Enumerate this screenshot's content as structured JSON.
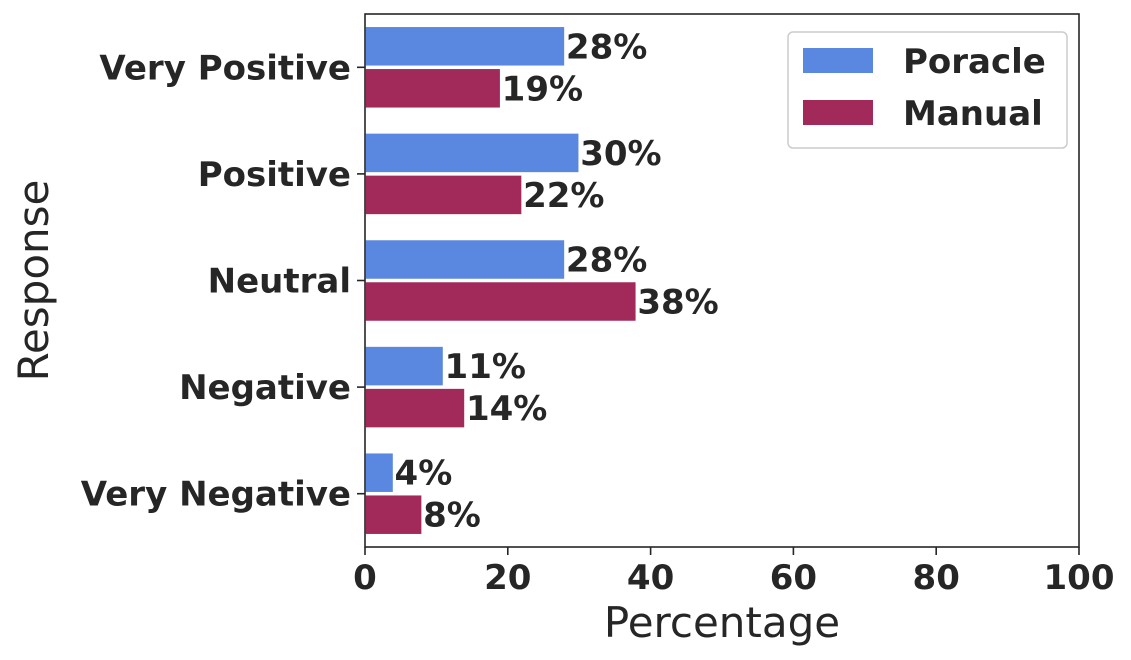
{
  "chart_data": {
    "type": "bar",
    "orientation": "horizontal",
    "categories": [
      "Very Positive",
      "Positive",
      "Neutral",
      "Negative",
      "Very Negative"
    ],
    "series": [
      {
        "name": "Poracle",
        "values": [
          28,
          30,
          28,
          11,
          4
        ],
        "labels": [
          "28%",
          "30%",
          "28%",
          "11%",
          "4%"
        ],
        "color": "#5a87e0"
      },
      {
        "name": "Manual",
        "values": [
          19,
          22,
          38,
          14,
          8
        ],
        "labels": [
          "19%",
          "22%",
          "38%",
          "14%",
          "8%"
        ],
        "color": "#a22a5a"
      }
    ],
    "xlabel": "Percentage",
    "ylabel": "Response",
    "xlim": [
      0,
      100
    ],
    "xticks": [
      0,
      20,
      40,
      60,
      80,
      100
    ],
    "xtick_labels": [
      "0",
      "20",
      "40",
      "60",
      "80",
      "100"
    ],
    "grid": false,
    "legend_position": "top-right"
  }
}
